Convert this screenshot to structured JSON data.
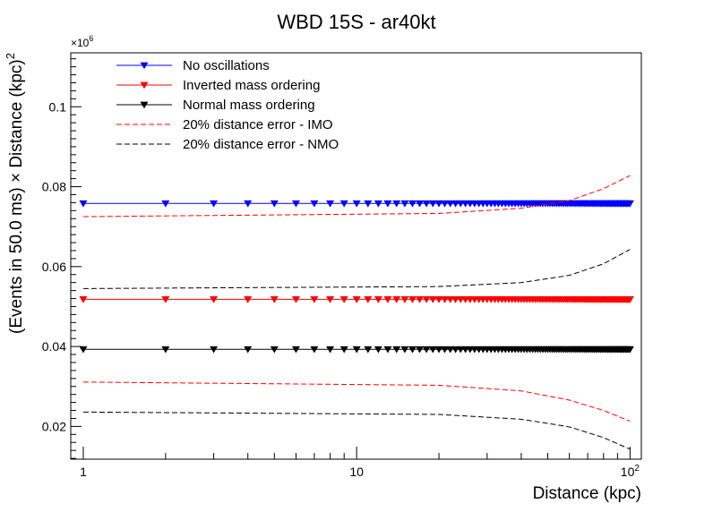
{
  "chart_data": {
    "type": "line",
    "title": "WBD 15S - ar40kt",
    "xlabel": "Distance (kpc)",
    "ylabel_main": "(Events in 50.0 ms) × Distance (kpc)",
    "ylabel_sup": "2",
    "y_multiplier_base": "×10",
    "y_multiplier_exp": "6",
    "x_scale": "log",
    "xlim": [
      0.9,
      110
    ],
    "ylim": [
      0.0118,
      0.1135
    ],
    "x_ticks": [
      {
        "value": 1,
        "label": "1"
      },
      {
        "value": 10,
        "label": "10"
      },
      {
        "value": 100,
        "label": "10",
        "sup": "2"
      }
    ],
    "y_ticks": [
      {
        "value": 0.02,
        "label": "0.02"
      },
      {
        "value": 0.04,
        "label": "0.04"
      },
      {
        "value": 0.06,
        "label": "0.06"
      },
      {
        "value": 0.08,
        "label": "0.08"
      },
      {
        "value": 0.1,
        "label": "0.1"
      }
    ],
    "legend_position": "top-left",
    "series": [
      {
        "name": "No oscillations",
        "style": "line-marker",
        "color": "#0000ff",
        "y": 0.0758
      },
      {
        "name": "Inverted mass ordering",
        "style": "line-marker",
        "color": "#ff0000",
        "y": 0.0518
      },
      {
        "name": "Normal mass ordering",
        "style": "line-marker",
        "color": "#000000",
        "y": 0.0393
      },
      {
        "name": "20% distance error - IMO",
        "style": "dashed",
        "color": "#ff0000",
        "upper": [
          [
            1,
            0.0725
          ],
          [
            20,
            0.0733
          ],
          [
            40,
            0.0746
          ],
          [
            60,
            0.0765
          ],
          [
            80,
            0.0795
          ],
          [
            100,
            0.0828
          ]
        ],
        "lower": [
          [
            1,
            0.0311
          ],
          [
            20,
            0.0303
          ],
          [
            40,
            0.0289
          ],
          [
            60,
            0.0266
          ],
          [
            80,
            0.024
          ],
          [
            100,
            0.0213
          ]
        ]
      },
      {
        "name": "20% distance error - NMO",
        "style": "dashed",
        "color": "#000000",
        "upper": [
          [
            1,
            0.0545
          ],
          [
            20,
            0.055
          ],
          [
            40,
            0.056
          ],
          [
            60,
            0.0578
          ],
          [
            80,
            0.0607
          ],
          [
            100,
            0.0643
          ]
        ],
        "lower": [
          [
            1,
            0.0236
          ],
          [
            20,
            0.023
          ],
          [
            40,
            0.0218
          ],
          [
            60,
            0.0199
          ],
          [
            80,
            0.0172
          ],
          [
            100,
            0.0143
          ]
        ]
      }
    ]
  }
}
